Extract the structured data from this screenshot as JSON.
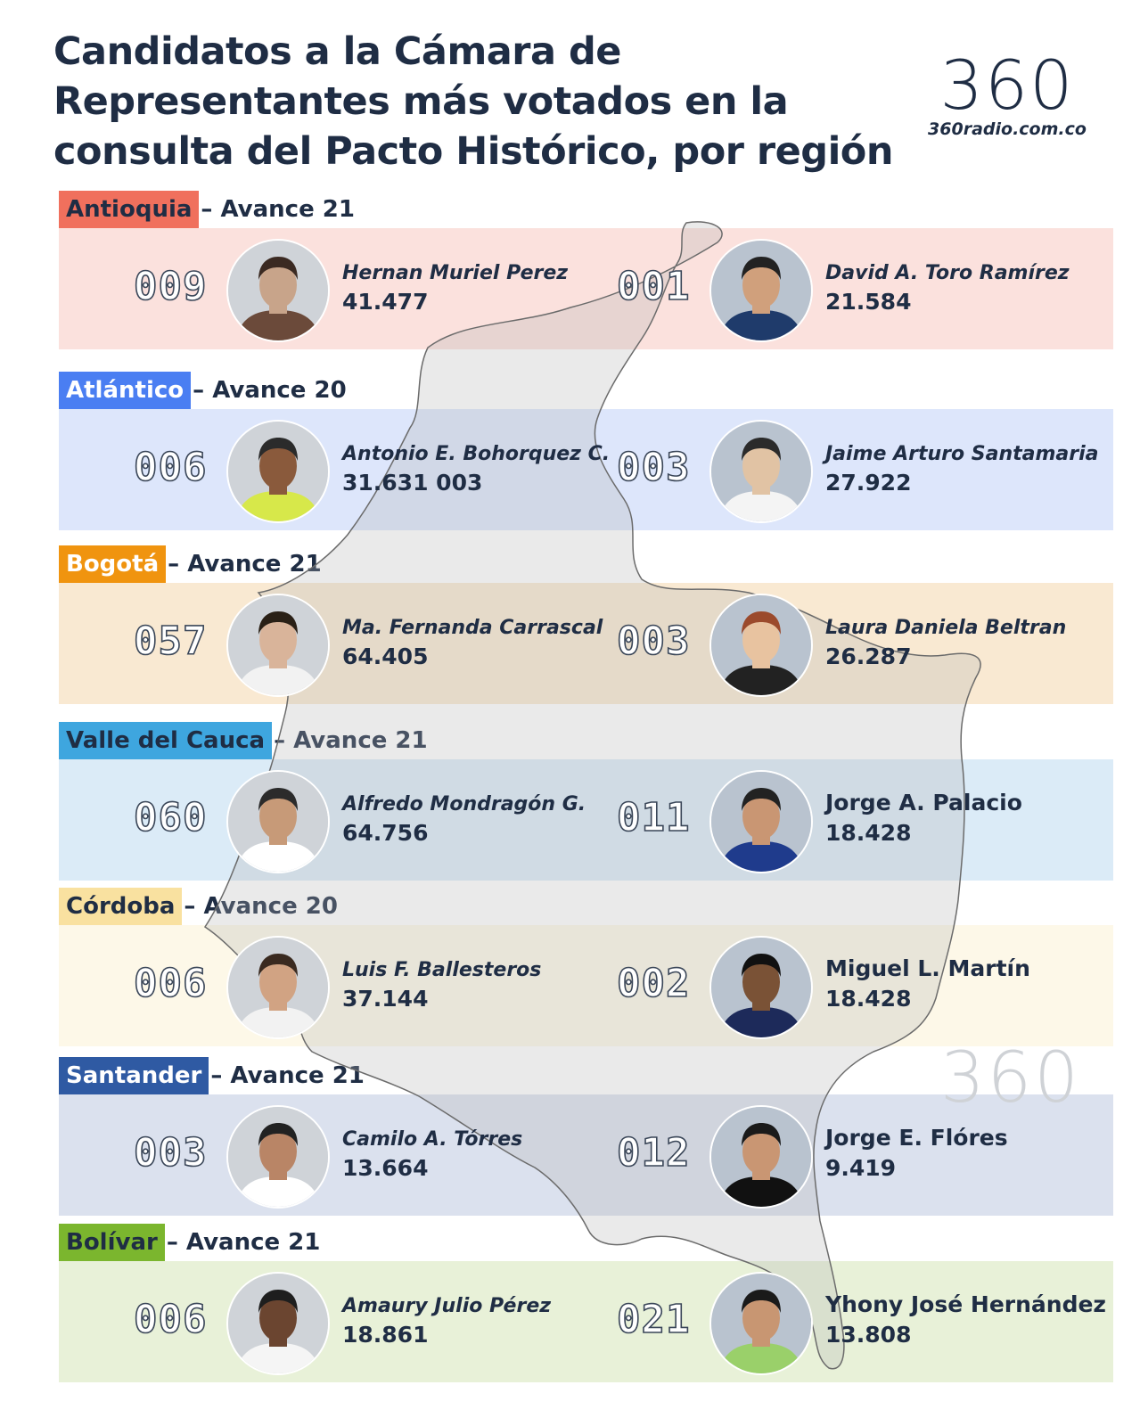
{
  "title": "Candidatos a la Cámara de Representantes más votados en la consulta del Pacto Histórico, por región",
  "logo": {
    "text": "360",
    "url": "360radio.com.co"
  },
  "watermark": "360",
  "regions": [
    {
      "name": "Antioquia",
      "avance": "– Avance 21",
      "tag_color": "#f0705d",
      "tag_text_color": "#1f2d44",
      "band_color": "#fbe1dd",
      "candidates": [
        {
          "number": "009",
          "name": "Hernan Muriel Perez",
          "votes": "41.477",
          "italic": true
        },
        {
          "number": "001",
          "name": "David A. Toro Ramírez",
          "votes": "21.584",
          "italic": true
        }
      ]
    },
    {
      "name": "Atlántico",
      "avance": "– Avance 20",
      "tag_color": "#4a7ef2",
      "tag_text_color": "#ffffff",
      "band_color": "#dde6fb",
      "candidates": [
        {
          "number": "006",
          "name": "Antonio E. Bohorquez C.",
          "votes": "31.631 003",
          "italic": true
        },
        {
          "number": "003",
          "name": "Jaime Arturo Santamaria",
          "votes": "27.922",
          "italic": true
        }
      ]
    },
    {
      "name": "Bogotá",
      "avance": "– Avance 21",
      "tag_color": "#f0940f",
      "tag_text_color": "#ffffff",
      "band_color": "#f9e9d2",
      "candidates": [
        {
          "number": "057",
          "name": "Ma. Fernanda Carrascal",
          "votes": "64.405",
          "italic": true
        },
        {
          "number": "003",
          "name": "Laura Daniela Beltran",
          "votes": "26.287",
          "italic": true
        }
      ]
    },
    {
      "name": "Valle del Cauca",
      "avance": "– Avance 21",
      "tag_color": "#3ea6df",
      "tag_text_color": "#1f2d44",
      "band_color": "#dbebf7",
      "candidates": [
        {
          "number": "060",
          "name": "Alfredo Mondragón G.",
          "votes": "64.756",
          "italic": true
        },
        {
          "number": "011",
          "name": "Jorge A. Palacio",
          "votes": "18.428",
          "italic": false
        }
      ]
    },
    {
      "name": "Córdoba",
      "avance": "– Avance 20",
      "tag_color": "#f9e1a0",
      "tag_text_color": "#1f2d44",
      "band_color": "#fdf8e8",
      "candidates": [
        {
          "number": "006",
          "name": "Luis F. Ballesteros",
          "votes": "37.144",
          "italic": true
        },
        {
          "number": "002",
          "name": "Miguel L. Martín",
          "votes": "18.428",
          "italic": false
        }
      ]
    },
    {
      "name": "Santander",
      "avance": "– Avance 21",
      "tag_color": "#2f5aa3",
      "tag_text_color": "#ffffff",
      "band_color": "#dbe1ee",
      "candidates": [
        {
          "number": "003",
          "name": "Camilo A. Tórres",
          "votes": "13.664",
          "italic": true
        },
        {
          "number": "012",
          "name": "Jorge E. Flóres",
          "votes": "9.419",
          "italic": false
        }
      ]
    },
    {
      "name": "Bolívar",
      "avance": "– Avance 21",
      "tag_color": "#7bb62e",
      "tag_text_color": "#1f2d44",
      "band_color": "#e8f1d8",
      "candidates": [
        {
          "number": "006",
          "name": "Amaury Julio Pérez",
          "votes": "18.861",
          "italic": true
        },
        {
          "number": "021",
          "name": "Yhony José Hernández",
          "votes": "13.808",
          "italic": false
        }
      ]
    }
  ]
}
